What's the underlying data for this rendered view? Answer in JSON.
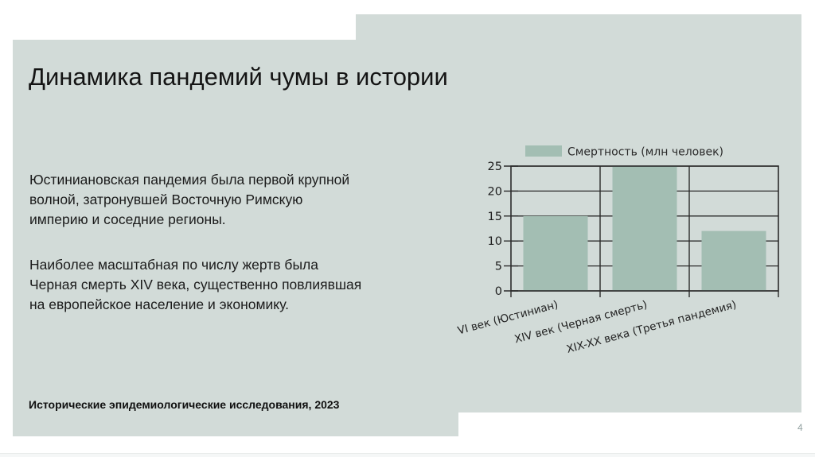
{
  "slide": {
    "title": "Динамика пандемий чумы в истории",
    "paragraphs": [
      "Юстиниановская пандемия была первой крупной\nволной, затронувшей Восточную Римскую\nимперию и соседние регионы.",
      "Наиболее масштабная по числу жертв была\nЧерная смерть XIV века, существенно повлиявшая\nна европейское население и экономику."
    ],
    "source": "Исторические эпидемиологические исследования, 2023",
    "page_number": "4"
  },
  "colors": {
    "panel_background": "#d2dbd8",
    "bar_fill": "#a3beb3",
    "axis_line": "#2b2b2b",
    "page_background": "#ffffff",
    "page_number_text": "#93a2a1"
  },
  "chart_data": {
    "type": "bar",
    "title": "",
    "categories": [
      "VI век (Юстиниан)",
      "XIV век (Черная смерть)",
      "XIX-XX века (Третья пандемия)"
    ],
    "values": [
      15,
      25,
      12
    ],
    "legend": "Смертность (млн человек)",
    "xlabel": "",
    "ylabel": "",
    "ylim": [
      0,
      25
    ],
    "yticks": [
      0,
      5,
      10,
      15,
      20,
      25
    ],
    "grid": true,
    "legend_position": "top",
    "x_label_rotation_deg": -15
  }
}
